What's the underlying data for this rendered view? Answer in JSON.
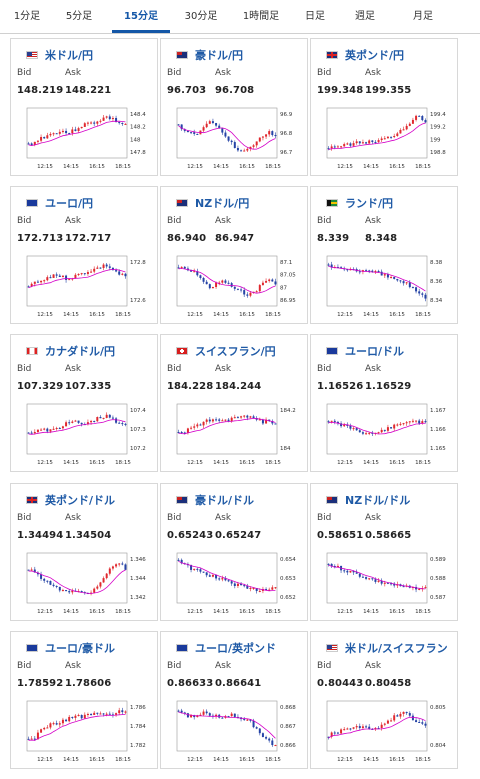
{
  "tabs": [
    {
      "label": "1分足"
    },
    {
      "label": "5分足"
    },
    {
      "label": "15分足"
    },
    {
      "label": "30分足"
    },
    {
      "label": "1時間足"
    },
    {
      "label": "日足"
    },
    {
      "label": "週足"
    },
    {
      "label": "月足"
    }
  ],
  "active_tab": "15分足",
  "labels": {
    "bid": "Bid",
    "ask": "Ask"
  },
  "x_ticks": [
    "12:15",
    "14:15",
    "16:15",
    "18:15"
  ],
  "colors": {
    "up": "#e0282e",
    "down": "#2543a6",
    "ma": "#d400c8",
    "tab_active": "#1457a7",
    "pair_title": "#1f5aa6"
  },
  "cards": [
    {
      "pair": "米ドル/円",
      "bid": "148.219",
      "ask": "148.221",
      "flag": "us-flag",
      "y_ticks": [
        "148.4",
        "148.2",
        "148",
        "147.8"
      ]
    },
    {
      "pair": "豪ドル/円",
      "bid": "96.703",
      "ask": "96.708",
      "flag": "au-flag",
      "y_ticks": [
        "96.9",
        "96.8",
        "96.7"
      ]
    },
    {
      "pair": "英ポンド/円",
      "bid": "199.348",
      "ask": "199.355",
      "flag": "uk-flag",
      "y_ticks": [
        "199.4",
        "199.2",
        "199",
        "198.8"
      ]
    },
    {
      "pair": "ユーロ/円",
      "bid": "172.713",
      "ask": "172.717",
      "flag": "eu-flag",
      "y_ticks": [
        "172.8",
        "172.6"
      ]
    },
    {
      "pair": "NZドル/円",
      "bid": "86.940",
      "ask": "86.947",
      "flag": "nz-flag",
      "y_ticks": [
        "87.1",
        "87.05",
        "87",
        "86.95"
      ]
    },
    {
      "pair": "ランド/円",
      "bid": "8.339",
      "ask": "8.348",
      "flag": "za-flag",
      "y_ticks": [
        "8.38",
        "8.36",
        "8.34"
      ]
    },
    {
      "pair": "カナダドル/円",
      "bid": "107.329",
      "ask": "107.335",
      "flag": "ca-flag",
      "y_ticks": [
        "107.4",
        "107.3",
        "107.2"
      ]
    },
    {
      "pair": "スイスフラン/円",
      "bid": "184.228",
      "ask": "184.244",
      "flag": "ch-flag",
      "y_ticks": [
        "184.2",
        "184"
      ]
    },
    {
      "pair": "ユーロ/ドル",
      "bid": "1.16526",
      "ask": "1.16529",
      "flag": "eu-flag",
      "y_ticks": [
        "1.167",
        "1.166",
        "1.165"
      ]
    },
    {
      "pair": "英ポンド/ドル",
      "bid": "1.34494",
      "ask": "1.34504",
      "flag": "uk-flag",
      "y_ticks": [
        "1.346",
        "1.344",
        "1.342"
      ]
    },
    {
      "pair": "豪ドル/ドル",
      "bid": "0.65243",
      "ask": "0.65247",
      "flag": "au-flag",
      "y_ticks": [
        "0.654",
        "0.653",
        "0.652"
      ]
    },
    {
      "pair": "NZドル/ドル",
      "bid": "0.58651",
      "ask": "0.58665",
      "flag": "nz-flag",
      "y_ticks": [
        "0.589",
        "0.588",
        "0.587"
      ]
    },
    {
      "pair": "ユーロ/豪ドル",
      "bid": "1.78592",
      "ask": "1.78606",
      "flag": "eu-flag",
      "y_ticks": [
        "1.786",
        "1.784",
        "1.782"
      ]
    },
    {
      "pair": "ユーロ/英ポンド",
      "bid": "0.86633",
      "ask": "0.86641",
      "flag": "eu-flag",
      "y_ticks": [
        "0.868",
        "0.867",
        "0.866"
      ]
    },
    {
      "pair": "米ドル/スイスフラン",
      "bid": "0.80443",
      "ask": "0.80458",
      "flag": "us-flag",
      "y_ticks": [
        "0.805",
        "0.804"
      ]
    }
  ]
}
